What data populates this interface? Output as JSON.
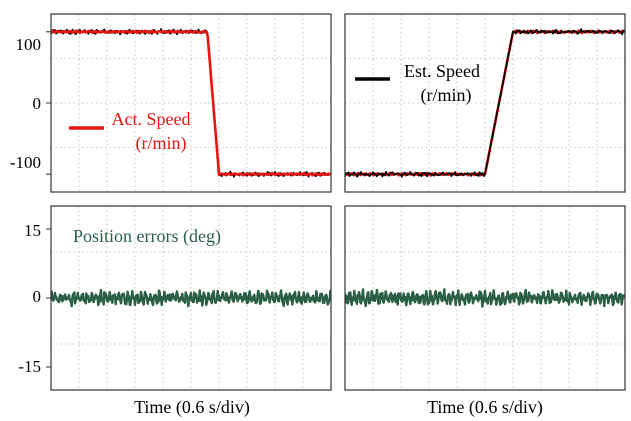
{
  "colors": {
    "actual": "#e8140f",
    "estimated": "#000000",
    "position_error": "#2a5f46",
    "grid": "#b4b4b4",
    "frame": "#333333"
  },
  "chart_data": [
    {
      "type": "line",
      "panel": "top-left",
      "x": [
        0,
        0.6,
        1.2,
        1.8,
        2.4,
        3.0,
        3.35,
        3.6,
        4.2,
        4.8,
        5.4,
        6.0
      ],
      "ylim": [
        -125,
        125
      ],
      "yticks": [
        "100",
        "0",
        "-100"
      ],
      "ytick_values": [
        100,
        0,
        -100
      ],
      "series": [
        {
          "name": "Act. Speed (r/min)",
          "color": "#e8140f",
          "values": [
            100,
            100,
            100,
            100,
            100,
            100,
            100,
            -100,
            -100,
            -100,
            -100,
            -100
          ]
        },
        {
          "name": "",
          "color": "#000000",
          "values": [
            100,
            100,
            100,
            100,
            100,
            100,
            100,
            -100,
            -100,
            -100,
            -100,
            -100
          ]
        }
      ],
      "legend": {
        "label": "Act. Speed",
        "unit": "(r/min)",
        "color": "#e8140f",
        "placement": "center-left"
      },
      "grid": true
    },
    {
      "type": "line",
      "panel": "top-right",
      "x": [
        0,
        0.6,
        1.2,
        1.8,
        2.4,
        3.0,
        3.6,
        4.2,
        4.8,
        5.4,
        6.0
      ],
      "ylim": [
        -125,
        125
      ],
      "series": [
        {
          "name": "",
          "color": "#e8140f",
          "values": [
            -100,
            -100,
            -100,
            -100,
            -100,
            -100,
            100,
            100,
            100,
            100,
            100
          ]
        },
        {
          "name": "Est. Speed (r/min)",
          "color": "#000000",
          "values": [
            -100,
            -100,
            -100,
            -100,
            -100,
            -100,
            100,
            100,
            100,
            100,
            100
          ]
        }
      ],
      "legend": {
        "label": "Est. Speed",
        "unit": "(r/min)",
        "color": "#000000",
        "placement": "top-left"
      },
      "grid": true
    },
    {
      "type": "line",
      "panel": "bottom-left",
      "x": [
        0,
        0.6,
        1.2,
        1.8,
        2.4,
        3.0,
        3.6,
        4.2,
        4.8,
        5.4,
        6.0
      ],
      "ylim": [
        -20,
        20
      ],
      "yticks": [
        "15",
        "0",
        "-15"
      ],
      "ytick_values": [
        15,
        0,
        -15
      ],
      "series": [
        {
          "name": "Position errors (deg)",
          "color": "#2a5f46",
          "values": [
            0,
            0,
            0,
            0,
            0,
            0,
            0,
            0,
            0,
            0,
            0
          ]
        }
      ],
      "legend": {
        "label": "Position errors (deg)",
        "color": "#2a5f46",
        "placement": "top-left"
      },
      "xlabel": "Time (0.6 s/div)",
      "grid": true
    },
    {
      "type": "line",
      "panel": "bottom-right",
      "x": [
        0,
        0.6,
        1.2,
        1.8,
        2.4,
        3.0,
        3.6,
        4.2,
        4.8,
        5.4,
        6.0
      ],
      "ylim": [
        -20,
        20
      ],
      "series": [
        {
          "name": "",
          "color": "#2a5f46",
          "values": [
            0,
            0,
            0,
            0,
            0,
            0,
            0,
            0,
            0,
            0,
            0
          ]
        }
      ],
      "xlabel": "Time (0.6 s/div)",
      "grid": true
    }
  ]
}
